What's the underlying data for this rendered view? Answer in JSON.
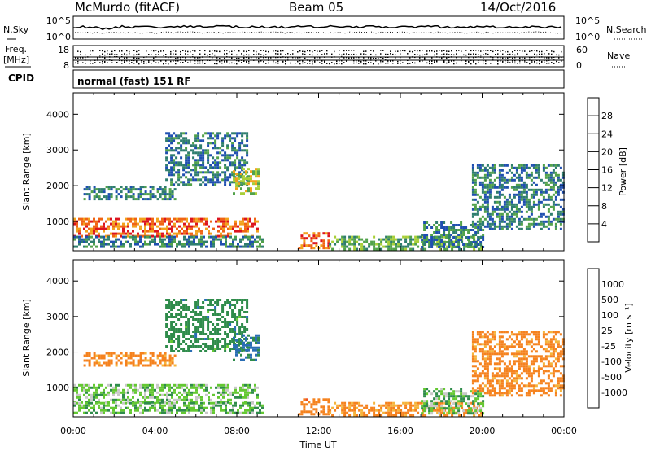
{
  "header": {
    "station": "McMurdo (fitACF)",
    "beam": "Beam 05",
    "date": "14/Oct/2016"
  },
  "top_panel": {
    "left_label": "N.Sky",
    "right_label": "N.Search",
    "left_ticks": [
      "10^5",
      "10^0"
    ],
    "right_ticks": [
      "10^5",
      "10^0"
    ]
  },
  "freq_panel": {
    "left_label_line1": "Freq.",
    "left_label_line2": "[MHz]",
    "left_ticks": [
      "18",
      "8"
    ],
    "right_label": "Nave",
    "right_ticks": [
      "60",
      "0"
    ]
  },
  "cpid": {
    "label": "CPID",
    "value": "normal (fast) 151 RF"
  },
  "chart_data": [
    {
      "type": "heatmap",
      "name": "power",
      "ylabel": "Slant Range [km]",
      "yticks": [
        1000,
        2000,
        3000,
        4000
      ],
      "ylim": [
        180,
        4600
      ],
      "xlim": [
        0,
        24
      ],
      "colorbar_label": "Power [dB]",
      "colorbar_ticks": [
        4,
        8,
        12,
        16,
        20,
        24,
        28
      ],
      "colorbar_range": [
        0,
        32
      ],
      "colors": [
        "#1e1ee6",
        "#1f4fb0",
        "#2f7e6e",
        "#52a24a",
        "#a8cf38",
        "#f2a21c",
        "#f06414",
        "#dc141e"
      ],
      "echo_regions": [
        {
          "t0": 0.0,
          "t1": 9.0,
          "r0": 600,
          "r1": 1100,
          "v": 26
        },
        {
          "t0": 0.0,
          "t1": 9.3,
          "r0": 300,
          "r1": 600,
          "v": 10
        },
        {
          "t0": 0.5,
          "t1": 5.0,
          "r0": 1600,
          "r1": 2000,
          "v": 10
        },
        {
          "t0": 4.5,
          "t1": 8.5,
          "r0": 2000,
          "r1": 3500,
          "v": 9
        },
        {
          "t0": 7.8,
          "t1": 9.0,
          "r0": 1800,
          "r1": 2500,
          "v": 18
        },
        {
          "t0": 11.0,
          "t1": 12.5,
          "r0": 250,
          "r1": 700,
          "v": 26
        },
        {
          "t0": 12.5,
          "t1": 20.0,
          "r0": 250,
          "r1": 600,
          "v": 14
        },
        {
          "t0": 17.0,
          "t1": 20.0,
          "r0": 300,
          "r1": 1000,
          "v": 10
        },
        {
          "t0": 19.5,
          "t1": 24.0,
          "r0": 800,
          "r1": 2600,
          "v": 10
        }
      ]
    },
    {
      "type": "heatmap",
      "name": "velocity",
      "ylabel": "Slant Range [km]",
      "xlabel": "Time UT",
      "yticks": [
        1000,
        2000,
        3000,
        4000
      ],
      "ylim": [
        180,
        4600
      ],
      "xlim": [
        0,
        24
      ],
      "xticks": [
        "00:00",
        "04:00",
        "08:00",
        "12:00",
        "16:00",
        "20:00",
        "00:00"
      ],
      "colorbar_label": "Velocity [m s⁻¹]",
      "colorbar_ticks": [
        "1000",
        "500",
        "100",
        "25",
        "-25",
        "-100",
        "-500",
        "-1000"
      ],
      "colors": [
        "#e61414",
        "#f0501e",
        "#f5821e",
        "#f5b43c",
        "#c8c8c8",
        "#64c832",
        "#2f8c4b",
        "#2a6eb4",
        "#1e3cc8"
      ],
      "echo_regions": [
        {
          "t0": 0.0,
          "t1": 9.0,
          "r0": 600,
          "r1": 1100,
          "v": 60
        },
        {
          "t0": 0.0,
          "t1": 9.3,
          "r0": 300,
          "r1": 600,
          "v": 80
        },
        {
          "t0": 0.5,
          "t1": 5.0,
          "r0": 1600,
          "r1": 2000,
          "v": -200
        },
        {
          "t0": 4.5,
          "t1": 8.5,
          "r0": 2000,
          "r1": 3500,
          "v": 300
        },
        {
          "t0": 7.8,
          "t1": 9.0,
          "r0": 1800,
          "r1": 2500,
          "v": 600
        },
        {
          "t0": 11.0,
          "t1": 12.5,
          "r0": 250,
          "r1": 700,
          "v": -300
        },
        {
          "t0": 12.5,
          "t1": 20.0,
          "r0": 250,
          "r1": 600,
          "v": -150
        },
        {
          "t0": 17.0,
          "t1": 20.0,
          "r0": 300,
          "r1": 1000,
          "v": 80
        },
        {
          "t0": 19.5,
          "t1": 24.0,
          "r0": 800,
          "r1": 2600,
          "v": -200
        }
      ]
    }
  ]
}
